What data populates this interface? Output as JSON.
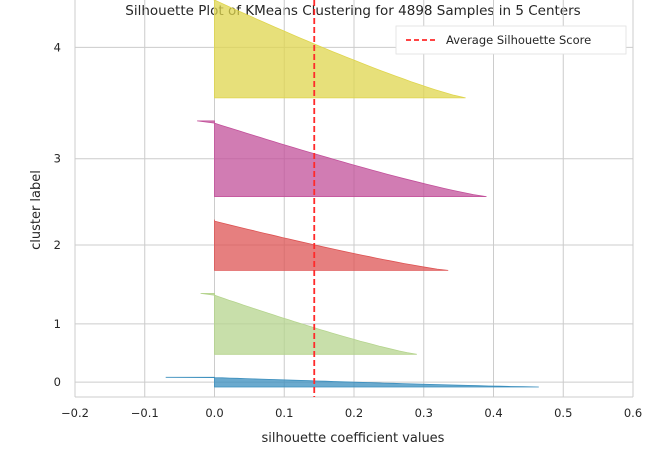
{
  "chart_data": {
    "type": "area",
    "title": "Silhouette Plot of KMeans Clustering for 4898 Samples in 5 Centers",
    "xlabel": "silhouette coefficient values",
    "ylabel": "cluster label",
    "xlim": [
      -0.2,
      0.6
    ],
    "x_ticks": [
      "−0.2",
      "−0.1",
      "0.0",
      "0.1",
      "0.2",
      "0.3",
      "0.4",
      "0.5",
      "0.6"
    ],
    "x_tick_values": [
      -0.2,
      -0.1,
      0.0,
      0.1,
      0.2,
      0.3,
      0.4,
      0.5,
      0.6
    ],
    "average_silhouette_score": 0.143,
    "grid": true,
    "legend_position": "top-right",
    "legend": [
      {
        "label": "Average Silhouette Score",
        "color": "#ff2a2a"
      }
    ],
    "clusters": [
      {
        "label": "0",
        "color": "#3a8ebd",
        "size": 160,
        "max": 0.465,
        "min": -0.07
      },
      {
        "label": "1",
        "color": "#b5d48e",
        "size": 1000,
        "max": 0.29,
        "min": -0.02
      },
      {
        "label": "2",
        "color": "#dd5454",
        "size": 835,
        "max": 0.335,
        "min": 0.0
      },
      {
        "label": "3",
        "color": "#c2509a",
        "size": 1245,
        "max": 0.39,
        "min": -0.025
      },
      {
        "label": "4",
        "color": "#dfd54e",
        "size": 1658,
        "max": 0.36,
        "min": -0.015
      }
    ]
  }
}
